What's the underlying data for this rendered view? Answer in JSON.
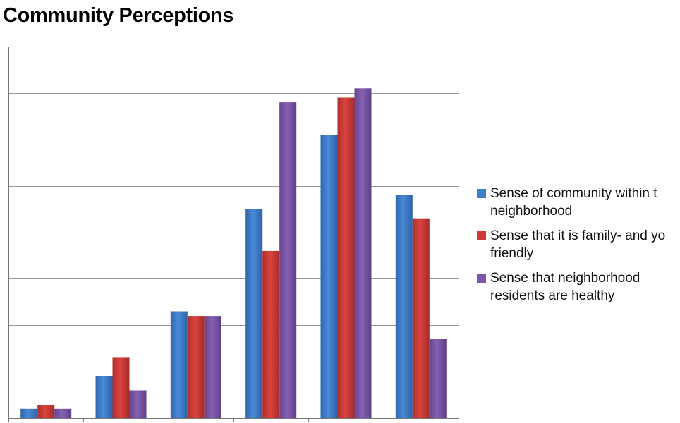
{
  "chart_data": {
    "type": "bar",
    "title": "Community Perceptions",
    "categories": [
      "",
      "",
      "",
      "",
      "",
      ""
    ],
    "ylim": [
      0,
      40
    ],
    "grid": true,
    "legend_position": "right",
    "series": [
      {
        "name": "Sense of community within the neighborhood",
        "legend_display": "Sense of community within t\nneighborhood",
        "color": "#3f7fc9",
        "values": [
          1,
          4.5,
          11.5,
          22.5,
          30.5,
          24
        ]
      },
      {
        "name": "Sense that it is family- and youth friendly",
        "legend_display": "Sense that it is family- and yo\nfriendly",
        "color": "#cd3b37",
        "values": [
          1.4,
          6.5,
          11,
          18,
          34.5,
          21.5
        ]
      },
      {
        "name": "Sense that neighborhood residents are healthy",
        "legend_display": "Sense that neighborhood\nresidents are healthy",
        "color": "#7c56a8",
        "values": [
          1,
          3,
          11,
          34,
          35.5,
          8.5
        ]
      }
    ]
  }
}
